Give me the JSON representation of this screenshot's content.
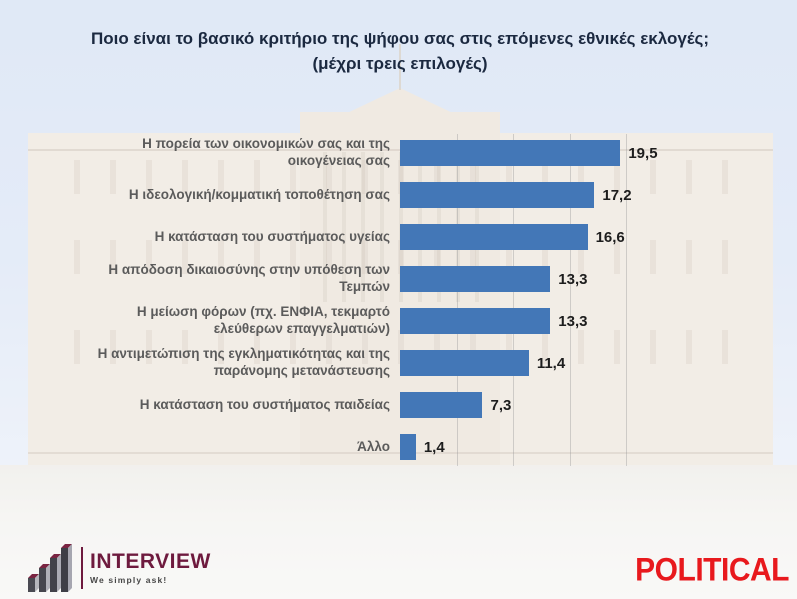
{
  "title": "Ποιο είναι το βασικό κριτήριο της ψήφου σας στις επόμενες εθνικές εκλογές;(μέχρι τρεις επιλογές)",
  "chart_data": {
    "type": "bar",
    "orientation": "horizontal",
    "title": "Ποιο είναι το βασικό κριτήριο της ψήφου σας στις επόμενες εθνικές εκλογές;(μέχρι τρεις επιλογές)",
    "categories": [
      "Η πορεία των οικονομικών σας και της οικογένειας σας",
      "Η ιδεολογική/κομματική τοποθέτηση σας",
      "Η κατάσταση του συστήματος υγείας",
      "Η απόδοση δικαιοσύνης στην υπόθεση των Τεμπών",
      "Η μείωση φόρων (πχ. ΕΝΦΙΑ, τεκμαρτό ελεύθερων επαγγελματιών)",
      "Η αντιμετώπιση της εγκληματικότητας και της παράνομης μετανάστευσης",
      "Η κατάσταση του συστήματος παιδείας",
      "Άλλο"
    ],
    "values": [
      19.5,
      17.2,
      16.6,
      13.3,
      13.3,
      11.4,
      7.3,
      1.4
    ],
    "value_labels": [
      "19,5",
      "17,2",
      "16,6",
      "13,3",
      "13,3",
      "11,4",
      "7,3",
      "1,4"
    ],
    "xlim": [
      0,
      20
    ],
    "gridlines_x": [
      5,
      10,
      15,
      20
    ],
    "bar_color": "#4377B7",
    "grid": "vertical-faint",
    "legend": "none",
    "xlabel": "",
    "ylabel": ""
  },
  "footer": {
    "interview_logo": {
      "name": "INTERVIEW",
      "tagline": "We simply ask!",
      "color": "#6E1A3E",
      "icon": "ascending-3d-bars-icon"
    },
    "political_logo": {
      "name": "POLITICAL",
      "color": "#E8191D"
    }
  }
}
